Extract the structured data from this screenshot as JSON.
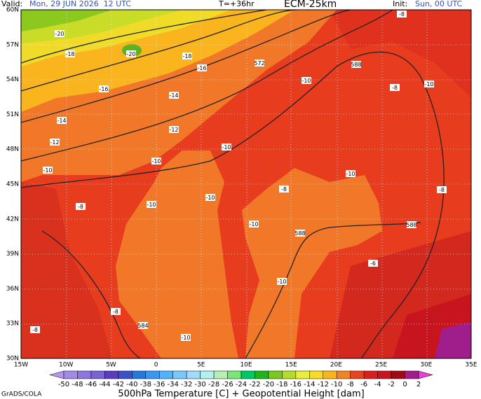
{
  "header": {
    "valid_label": "Valid:",
    "valid_time": "Mon, 29 JUN 2026  12 UTC",
    "forecast_hour": "T=+36hr",
    "model": "ECM-25km",
    "init_label": "Init:",
    "init_time": "Sun, 00 UTC"
  },
  "map": {
    "lat_labels": [
      "60N",
      "57N",
      "54N",
      "51N",
      "48N",
      "45N",
      "42N",
      "39N",
      "36N",
      "33N",
      "30N"
    ],
    "lon_labels": [
      "15W",
      "10W",
      "5W",
      "0",
      "5E",
      "10E",
      "15E",
      "20E",
      "25E",
      "30E",
      "35E"
    ],
    "contour_labels": [
      "-20",
      "-18",
      "-20",
      "-18",
      "-16",
      "-16",
      "-14",
      "-12",
      "-14",
      "-12",
      "-10",
      "-10",
      "-10",
      "-10",
      "-8",
      "-8",
      "-10",
      "-10",
      "-8",
      "-8",
      "-8",
      "-10",
      "-10",
      "-10",
      "-6",
      "-10",
      "-8",
      "-8",
      "-10",
      "572",
      "588",
      "588",
      "588",
      "584"
    ]
  },
  "colorbar": {
    "labels": [
      -50,
      -48,
      -46,
      -44,
      -42,
      -40,
      -38,
      -36,
      -34,
      -32,
      -30,
      -28,
      -26,
      -24,
      -22,
      -20,
      -18,
      -16,
      -14,
      -12,
      -10,
      -8,
      -6,
      -4,
      -2,
      0,
      2
    ],
    "colors": [
      "#b496f0",
      "#a08ce6",
      "#8c78dc",
      "#7864d2",
      "#5a3cbe",
      "#3c50c8",
      "#2878dc",
      "#3c96f0",
      "#50b4fa",
      "#78c8fa",
      "#a0dcfa",
      "#b4f0f0",
      "#b4f0b4",
      "#78e678",
      "#00c864",
      "#1eb41e",
      "#78c81e",
      "#b4dc28",
      "#e6f03c",
      "#fadc28",
      "#fab41e",
      "#f08228",
      "#e6461e",
      "#dc1e1e",
      "#c8141e",
      "#a00a14",
      "#a01e8c",
      "#f03cdc"
    ],
    "title": "500hPa Temperature [C] + Geopotential Height [dam]"
  },
  "footer": {
    "credit": "GrADS/COLA"
  }
}
